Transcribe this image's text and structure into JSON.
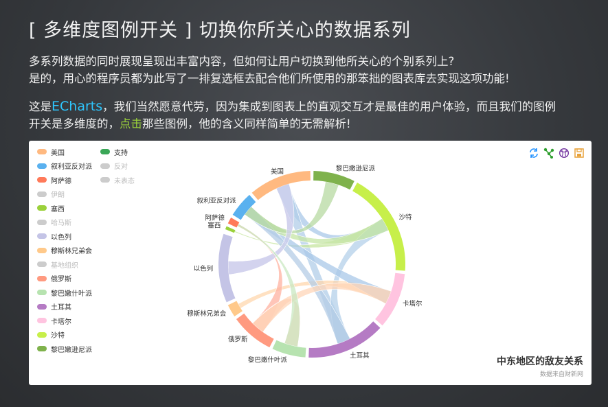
{
  "header": {
    "title": "[ 多维度图例开关 ] 切换你所关心的数据系列"
  },
  "intro": {
    "line1": "多系列数据的同时展现呈现出丰富内容，但如何让用户切换到他所关心的个别系列上?",
    "line2": "是的，用心的程序员都为此写了一排复选框去配合他们所使用的那笨拙的图表库去实现这项功能!",
    "line3_pre": "这是",
    "line3_brand": "ECharts",
    "line3_post": "，我们当然愿意代劳，因为集成到图表上的直观交互才是最佳的用户体验，而且我们的图例",
    "line4_pre": "开关是多维度的，",
    "line4_click": "点击",
    "line4_post": "那些图例，他的含义同样简单的无需解析!"
  },
  "legend": {
    "col1": [
      {
        "label": "美国",
        "color": "#ffb980",
        "on": true
      },
      {
        "label": "叙利亚反对派",
        "color": "#5ab1ef",
        "on": true
      },
      {
        "label": "阿萨德",
        "color": "#ff7a5a",
        "on": true
      },
      {
        "label": "伊朗",
        "color": "#cccccc",
        "on": false
      },
      {
        "label": "塞西",
        "color": "#9bd13b",
        "on": true
      },
      {
        "label": "哈马斯",
        "color": "#cccccc",
        "on": false
      },
      {
        "label": "以色列",
        "color": "#c4c4e6",
        "on": true
      },
      {
        "label": "穆斯林兄弟会",
        "color": "#ffc98a",
        "on": true
      },
      {
        "label": "基地组织",
        "color": "#cccccc",
        "on": false
      },
      {
        "label": "俄罗斯",
        "color": "#ff9a80",
        "on": true
      },
      {
        "label": "黎巴嫩什叶派",
        "color": "#b7e3b0",
        "on": true
      },
      {
        "label": "土耳其",
        "color": "#b57bc4",
        "on": true
      },
      {
        "label": "卡塔尔",
        "color": "#ffc4e0",
        "on": true
      },
      {
        "label": "沙特",
        "color": "#c7ef4a",
        "on": true
      },
      {
        "label": "黎巴嫩逊尼派",
        "color": "#7fb24c",
        "on": true
      }
    ],
    "col2": [
      {
        "label": "支持",
        "color": "#3aa757",
        "on": true
      },
      {
        "label": "反对",
        "color": "#cccccc",
        "on": false
      },
      {
        "label": "未表态",
        "color": "#cccccc",
        "on": false
      }
    ]
  },
  "toolbox": {
    "icons": [
      "refresh-icon",
      "force-layout-icon",
      "chord-icon",
      "save-image-icon"
    ],
    "colors": [
      "#1e90ff",
      "#2e9e2e",
      "#7a3fa5",
      "#e8a23a"
    ]
  },
  "chart_data": {
    "type": "chord",
    "title": "中东地区的敌友关系",
    "subtitle": "数据来自财新网",
    "nodes": [
      {
        "name": "黎巴嫩逊尼派",
        "color": "#7fb24c"
      },
      {
        "name": "沙特",
        "color": "#c7ef4a"
      },
      {
        "name": "卡塔尔",
        "color": "#ffc4e0"
      },
      {
        "name": "土耳其",
        "color": "#b57bc4"
      },
      {
        "name": "黎巴嫩什叶派",
        "color": "#b7e3b0"
      },
      {
        "name": "俄罗斯",
        "color": "#ff9a80"
      },
      {
        "name": "穆斯林兄弟会",
        "color": "#ffc98a"
      },
      {
        "name": "以色列",
        "color": "#c4c4e6"
      },
      {
        "name": "塞西",
        "color": "#9bd13b"
      },
      {
        "name": "阿萨德",
        "color": "#ff7a5a"
      },
      {
        "name": "叙利亚反对派",
        "color": "#5ab1ef"
      },
      {
        "name": "美国",
        "color": "#ffb980"
      }
    ]
  }
}
